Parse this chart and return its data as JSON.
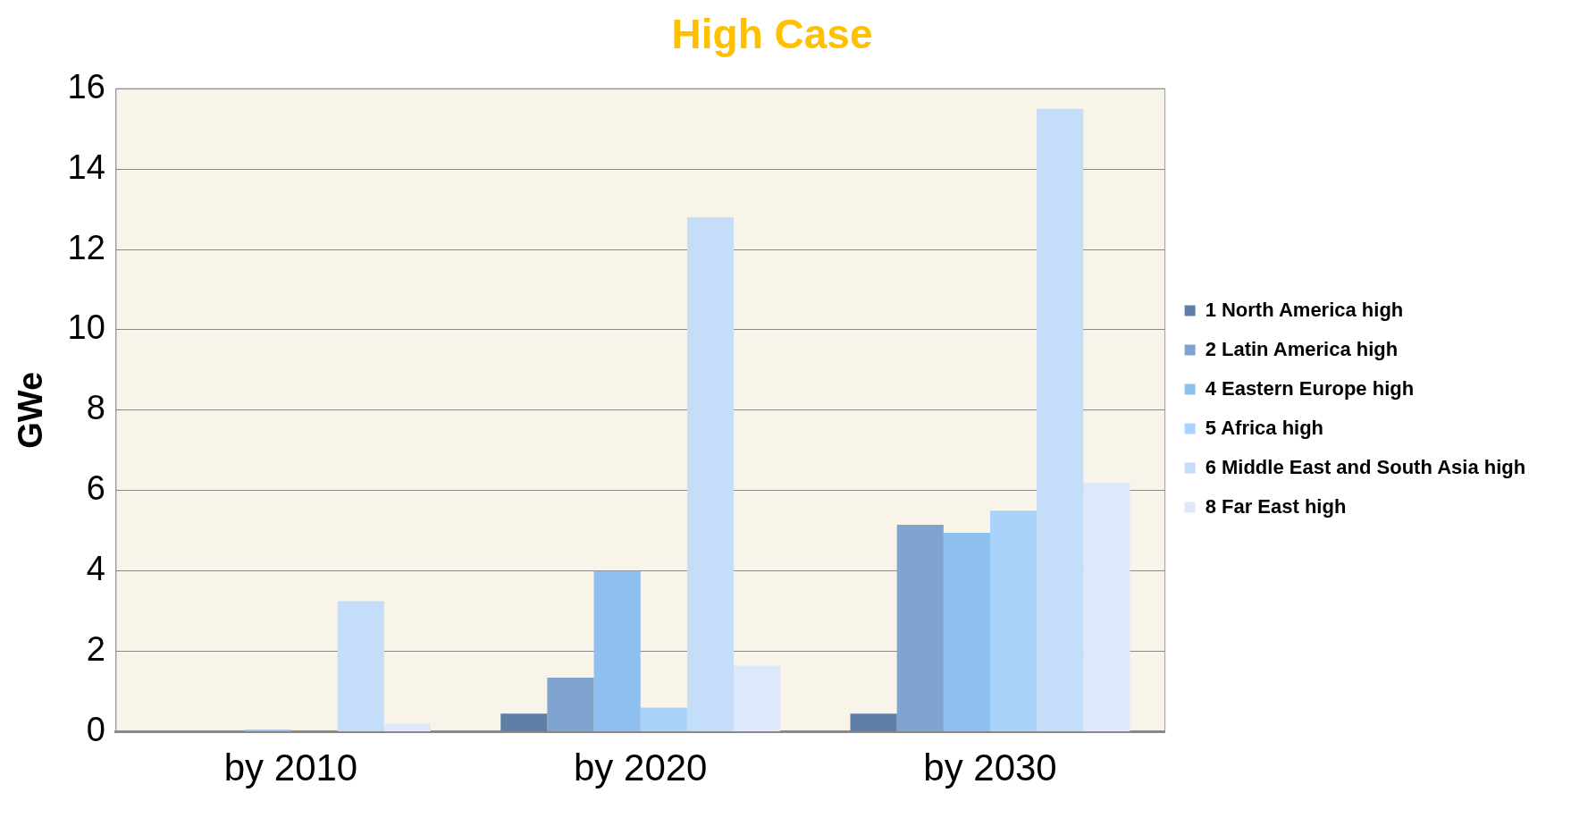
{
  "chart_data": {
    "type": "bar",
    "title": "High Case",
    "ylabel": "GWe",
    "categories": [
      "by 2010",
      "by 2020",
      "by 2030"
    ],
    "series": [
      {
        "name": "1 North America high",
        "color": "#5f7fa6",
        "values": [
          0,
          0.45,
          0.45
        ]
      },
      {
        "name": "2 Latin America high",
        "color": "#7ea4cf",
        "values": [
          0,
          1.35,
          5.15
        ]
      },
      {
        "name": "4 Eastern Europe high",
        "color": "#8fbfef",
        "values": [
          0.05,
          4.0,
          4.95
        ]
      },
      {
        "name": "5 Africa high",
        "color": "#a9d3fb",
        "values": [
          0,
          0.6,
          5.5
        ]
      },
      {
        "name": "6 Middle East and South Asia high",
        "color": "#c4ddf9",
        "values": [
          3.25,
          12.8,
          15.5
        ]
      },
      {
        "name": "8 Far East high",
        "color": "#dde9fa",
        "values": [
          0.2,
          1.65,
          6.2
        ]
      }
    ],
    "ylim": [
      0,
      16
    ],
    "yticks": [
      0,
      2,
      4,
      6,
      8,
      10,
      12,
      14,
      16
    ],
    "grid": "y",
    "legend": "right"
  }
}
